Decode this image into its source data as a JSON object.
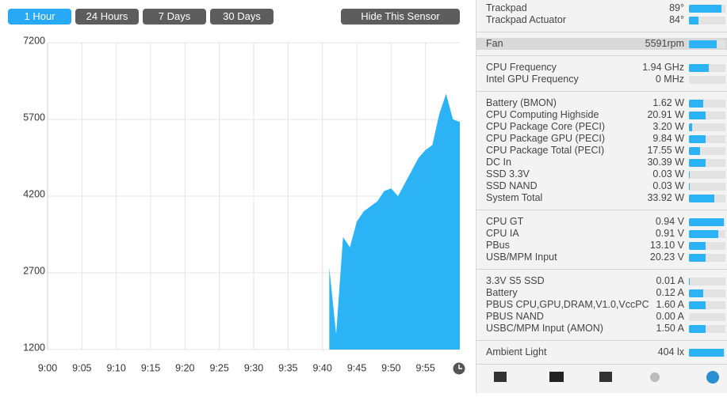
{
  "buttons": [
    "1 Hour",
    "24 Hours",
    "7 Days",
    "30 Days"
  ],
  "hide_button": "Hide This Sensor",
  "chart_data": {
    "type": "area",
    "color": "#2cb3f6",
    "grid": true,
    "x": [
      "9:41",
      "9:42",
      "9:43",
      "9:44",
      "9:45",
      "9:46",
      "9:47",
      "9:48",
      "9:49",
      "9:50",
      "9:51",
      "9:52",
      "9:53",
      "9:54",
      "9:55",
      "9:56",
      "9:57",
      "9:58",
      "9:59",
      "10:00"
    ],
    "values": [
      2800,
      1500,
      3400,
      3200,
      3700,
      3900,
      4000,
      4100,
      4300,
      4350,
      4200,
      4450,
      4700,
      4950,
      5100,
      5200,
      5800,
      6200,
      5700,
      5650
    ],
    "xlim": [
      "9:00",
      "10:00"
    ],
    "xticks": [
      "9:00",
      "9:05",
      "9:10",
      "9:15",
      "9:20",
      "9:25",
      "9:30",
      "9:35",
      "9:40",
      "9:45",
      "9:50",
      "9:55"
    ],
    "ylim": [
      1200,
      7200
    ],
    "yticks": [
      1200,
      2700,
      4200,
      5700,
      7200
    ]
  },
  "sensors": {
    "groups": [
      {
        "rows": [
          {
            "name": "Trackpad",
            "value": "89°",
            "level": 90
          },
          {
            "name": "Trackpad Actuator",
            "value": "84°",
            "level": 25
          }
        ]
      },
      {
        "selected": true,
        "rows": [
          {
            "name": "Fan",
            "value": "5591rpm",
            "level": 75
          }
        ]
      },
      {
        "rows": [
          {
            "name": "CPU Frequency",
            "value": "1.94 GHz",
            "level": 55
          },
          {
            "name": "Intel GPU Frequency",
            "value": "0 MHz",
            "level": 0
          }
        ]
      },
      {
        "rows": [
          {
            "name": "Battery (BMON)",
            "value": "1.62 W",
            "level": 40
          },
          {
            "name": "CPU Computing Highside",
            "value": "20.91 W",
            "level": 45
          },
          {
            "name": "CPU Package Core (PECI)",
            "value": "3.20 W",
            "level": 8
          },
          {
            "name": "CPU Package GPU (PECI)",
            "value": "9.84 W",
            "level": 45
          },
          {
            "name": "CPU Package Total (PECI)",
            "value": "17.55 W",
            "level": 30
          },
          {
            "name": "DC In",
            "value": "30.39 W",
            "level": 45
          },
          {
            "name": "SSD 3.3V",
            "value": "0.03 W",
            "level": 3
          },
          {
            "name": "SSD NAND",
            "value": "0.03 W",
            "level": 3
          },
          {
            "name": "System Total",
            "value": "33.92 W",
            "level": 70
          }
        ]
      },
      {
        "rows": [
          {
            "name": "CPU GT",
            "value": "0.94 V",
            "level": 95
          },
          {
            "name": "CPU IA",
            "value": "0.91 V",
            "level": 80
          },
          {
            "name": "PBus",
            "value": "13.10 V",
            "level": 45
          },
          {
            "name": "USB/MPM Input",
            "value": "20.23 V",
            "level": 45
          }
        ]
      },
      {
        "rows": [
          {
            "name": "3.3V S5 SSD",
            "value": "0.01 A",
            "level": 3
          },
          {
            "name": "Battery",
            "value": "0.12 A",
            "level": 40
          },
          {
            "name": "PBUS CPU,GPU,DRAM,V1.0,VccPC",
            "value": "1.60 A",
            "level": 45
          },
          {
            "name": "PBUS NAND",
            "value": "0.00 A",
            "level": 0
          },
          {
            "name": "USBC/MPM Input (AMON)",
            "value": "1.50 A",
            "level": 45
          }
        ]
      },
      {
        "rows": [
          {
            "name": "Ambient Light",
            "value": "404 lx",
            "level": 95
          }
        ]
      }
    ]
  }
}
